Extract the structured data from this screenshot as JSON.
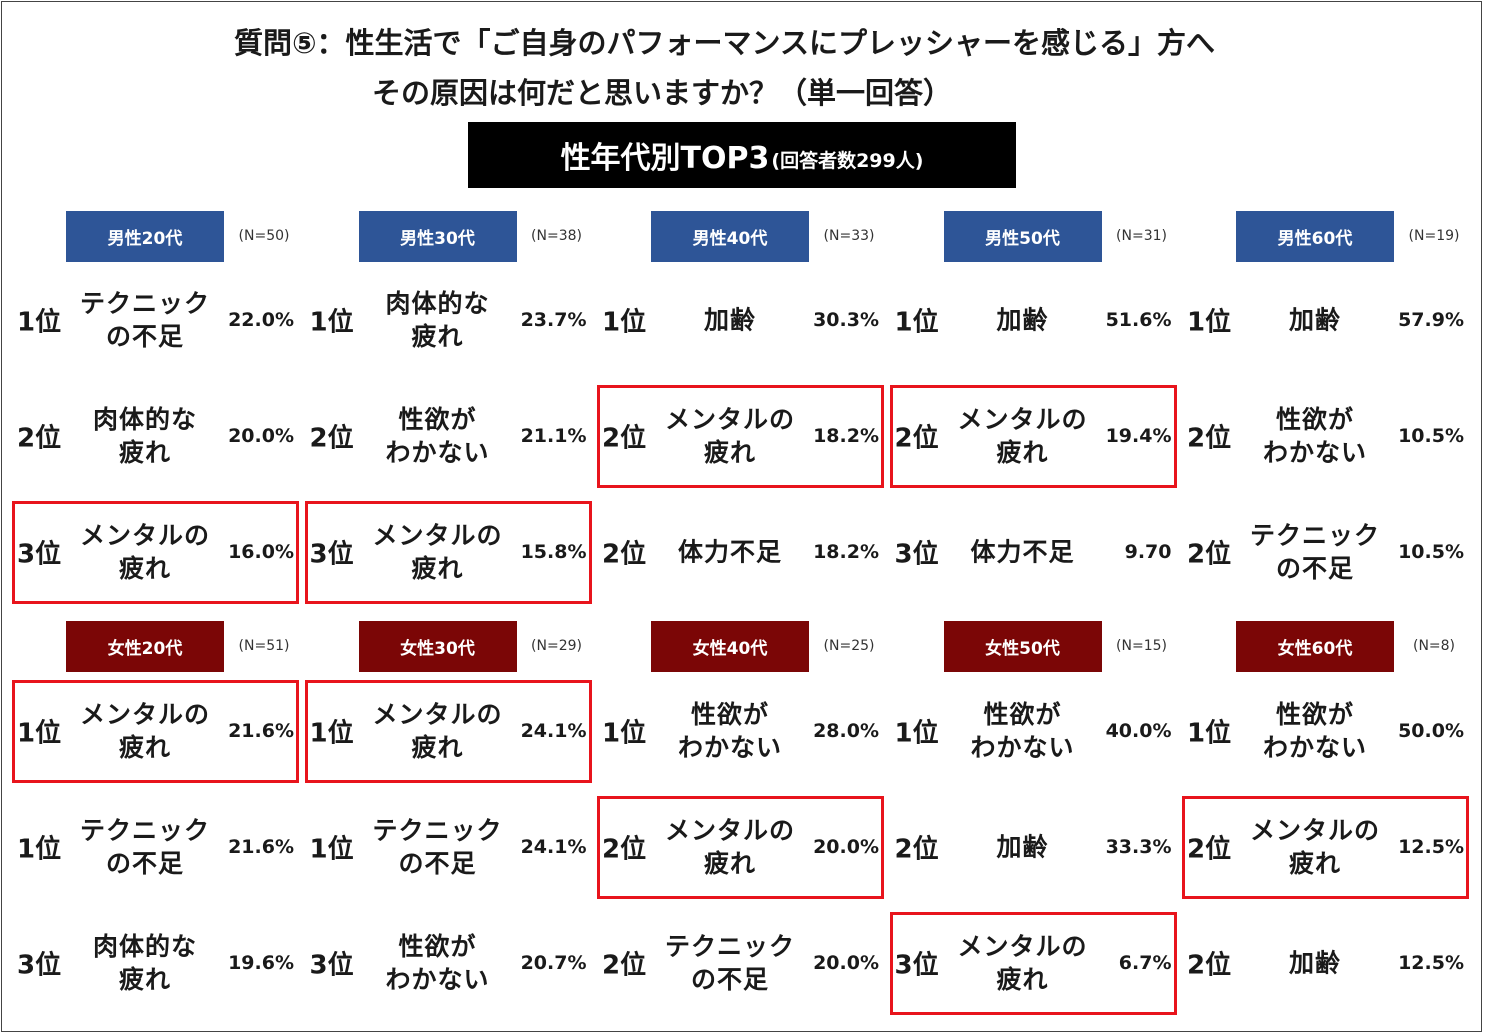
{
  "header": {
    "title_line1": "質問⑤：性生活で「ご自身のパフォーマンスにプレッシャーを感じる」方へ",
    "title_line2": "その原因は何だと思いますか？（単一回答）",
    "subtitle_main": "性年代別TOP3",
    "subtitle_sub": "(回答者数299人)"
  },
  "colors": {
    "male": "#2e5597",
    "female": "#7b0606",
    "highlight": "#e8141c"
  },
  "chart_data": {
    "type": "table",
    "sections": [
      {
        "gender": "male",
        "groups": [
          {
            "label": "男性20代",
            "n": "(N=50)",
            "rows": [
              {
                "rank": "1位",
                "reason": "テクニック\nの不足",
                "pct": "22.0%",
                "highlight": false
              },
              {
                "rank": "2位",
                "reason": "肉体的な\n疲れ",
                "pct": "20.0%",
                "highlight": false
              },
              {
                "rank": "3位",
                "reason": "メンタルの\n疲れ",
                "pct": "16.0%",
                "highlight": true
              }
            ]
          },
          {
            "label": "男性30代",
            "n": "(N=38)",
            "rows": [
              {
                "rank": "1位",
                "reason": "肉体的な\n疲れ",
                "pct": "23.7%",
                "highlight": false
              },
              {
                "rank": "2位",
                "reason": "性欲が\nわかない",
                "pct": "21.1%",
                "highlight": false
              },
              {
                "rank": "3位",
                "reason": "メンタルの\n疲れ",
                "pct": "15.8%",
                "highlight": true
              }
            ]
          },
          {
            "label": "男性40代",
            "n": "(N=33)",
            "rows": [
              {
                "rank": "1位",
                "reason": "加齢",
                "pct": "30.3%",
                "highlight": false
              },
              {
                "rank": "2位",
                "reason": "メンタルの\n疲れ",
                "pct": "18.2%",
                "highlight": true
              },
              {
                "rank": "2位",
                "reason": "体力不足",
                "pct": "18.2%",
                "highlight": false
              }
            ]
          },
          {
            "label": "男性50代",
            "n": "(N=31)",
            "rows": [
              {
                "rank": "1位",
                "reason": "加齢",
                "pct": "51.6%",
                "highlight": false
              },
              {
                "rank": "2位",
                "reason": "メンタルの\n疲れ",
                "pct": "19.4%",
                "highlight": true
              },
              {
                "rank": "3位",
                "reason": "体力不足",
                "pct": "9.70",
                "highlight": false
              }
            ]
          },
          {
            "label": "男性60代",
            "n": "(N=19)",
            "rows": [
              {
                "rank": "1位",
                "reason": "加齢",
                "pct": "57.9%",
                "highlight": false
              },
              {
                "rank": "2位",
                "reason": "性欲が\nわかない",
                "pct": "10.5%",
                "highlight": false
              },
              {
                "rank": "2位",
                "reason": "テクニック\nの不足",
                "pct": "10.5%",
                "highlight": false
              }
            ]
          }
        ]
      },
      {
        "gender": "female",
        "groups": [
          {
            "label": "女性20代",
            "n": "(N=51)",
            "rows": [
              {
                "rank": "1位",
                "reason": "メンタルの\n疲れ",
                "pct": "21.6%",
                "highlight": true
              },
              {
                "rank": "1位",
                "reason": "テクニック\nの不足",
                "pct": "21.6%",
                "highlight": false
              },
              {
                "rank": "3位",
                "reason": "肉体的な\n疲れ",
                "pct": "19.6%",
                "highlight": false
              }
            ]
          },
          {
            "label": "女性30代",
            "n": "(N=29)",
            "rows": [
              {
                "rank": "1位",
                "reason": "メンタルの\n疲れ",
                "pct": "24.1%",
                "highlight": true
              },
              {
                "rank": "1位",
                "reason": "テクニック\nの不足",
                "pct": "24.1%",
                "highlight": false
              },
              {
                "rank": "3位",
                "reason": "性欲が\nわかない",
                "pct": "20.7%",
                "highlight": false
              }
            ]
          },
          {
            "label": "女性40代",
            "n": "(N=25)",
            "rows": [
              {
                "rank": "1位",
                "reason": "性欲が\nわかない",
                "pct": "28.0%",
                "highlight": false
              },
              {
                "rank": "2位",
                "reason": "メンタルの\n疲れ",
                "pct": "20.0%",
                "highlight": true
              },
              {
                "rank": "2位",
                "reason": "テクニック\nの不足",
                "pct": "20.0%",
                "highlight": false
              }
            ]
          },
          {
            "label": "女性50代",
            "n": "(N=15)",
            "rows": [
              {
                "rank": "1位",
                "reason": "性欲が\nわかない",
                "pct": "40.0%",
                "highlight": false
              },
              {
                "rank": "2位",
                "reason": "加齢",
                "pct": "33.3%",
                "highlight": false
              },
              {
                "rank": "3位",
                "reason": "メンタルの\n疲れ",
                "pct": "6.7%",
                "highlight": true
              }
            ]
          },
          {
            "label": "女性60代",
            "n": "(N=8)",
            "rows": [
              {
                "rank": "1位",
                "reason": "性欲が\nわかない",
                "pct": "50.0%",
                "highlight": false
              },
              {
                "rank": "2位",
                "reason": "メンタルの\n疲れ",
                "pct": "12.5%",
                "highlight": true
              },
              {
                "rank": "2位",
                "reason": "加齢",
                "pct": "12.5%",
                "highlight": false
              }
            ]
          }
        ]
      }
    ]
  }
}
